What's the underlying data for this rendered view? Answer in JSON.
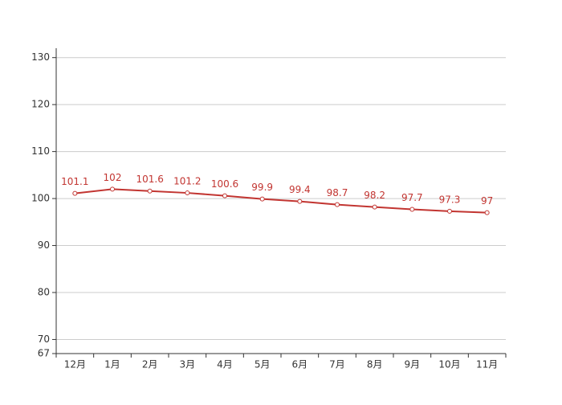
{
  "chart_data": {
    "type": "line",
    "categories": [
      "12月",
      "1月",
      "2月",
      "3月",
      "4月",
      "5月",
      "6月",
      "7月",
      "8月",
      "9月",
      "10月",
      "11月"
    ],
    "series": [
      {
        "color": "#c23531",
        "values": [
          101.1,
          102,
          101.6,
          101.2,
          100.6,
          99.9,
          99.4,
          98.7,
          98.2,
          97.7,
          97.3,
          97
        ]
      }
    ],
    "ylim": [
      67,
      132
    ],
    "yticks": [
      67,
      70,
      80,
      90,
      100,
      110,
      120,
      130
    ],
    "grid": true
  }
}
